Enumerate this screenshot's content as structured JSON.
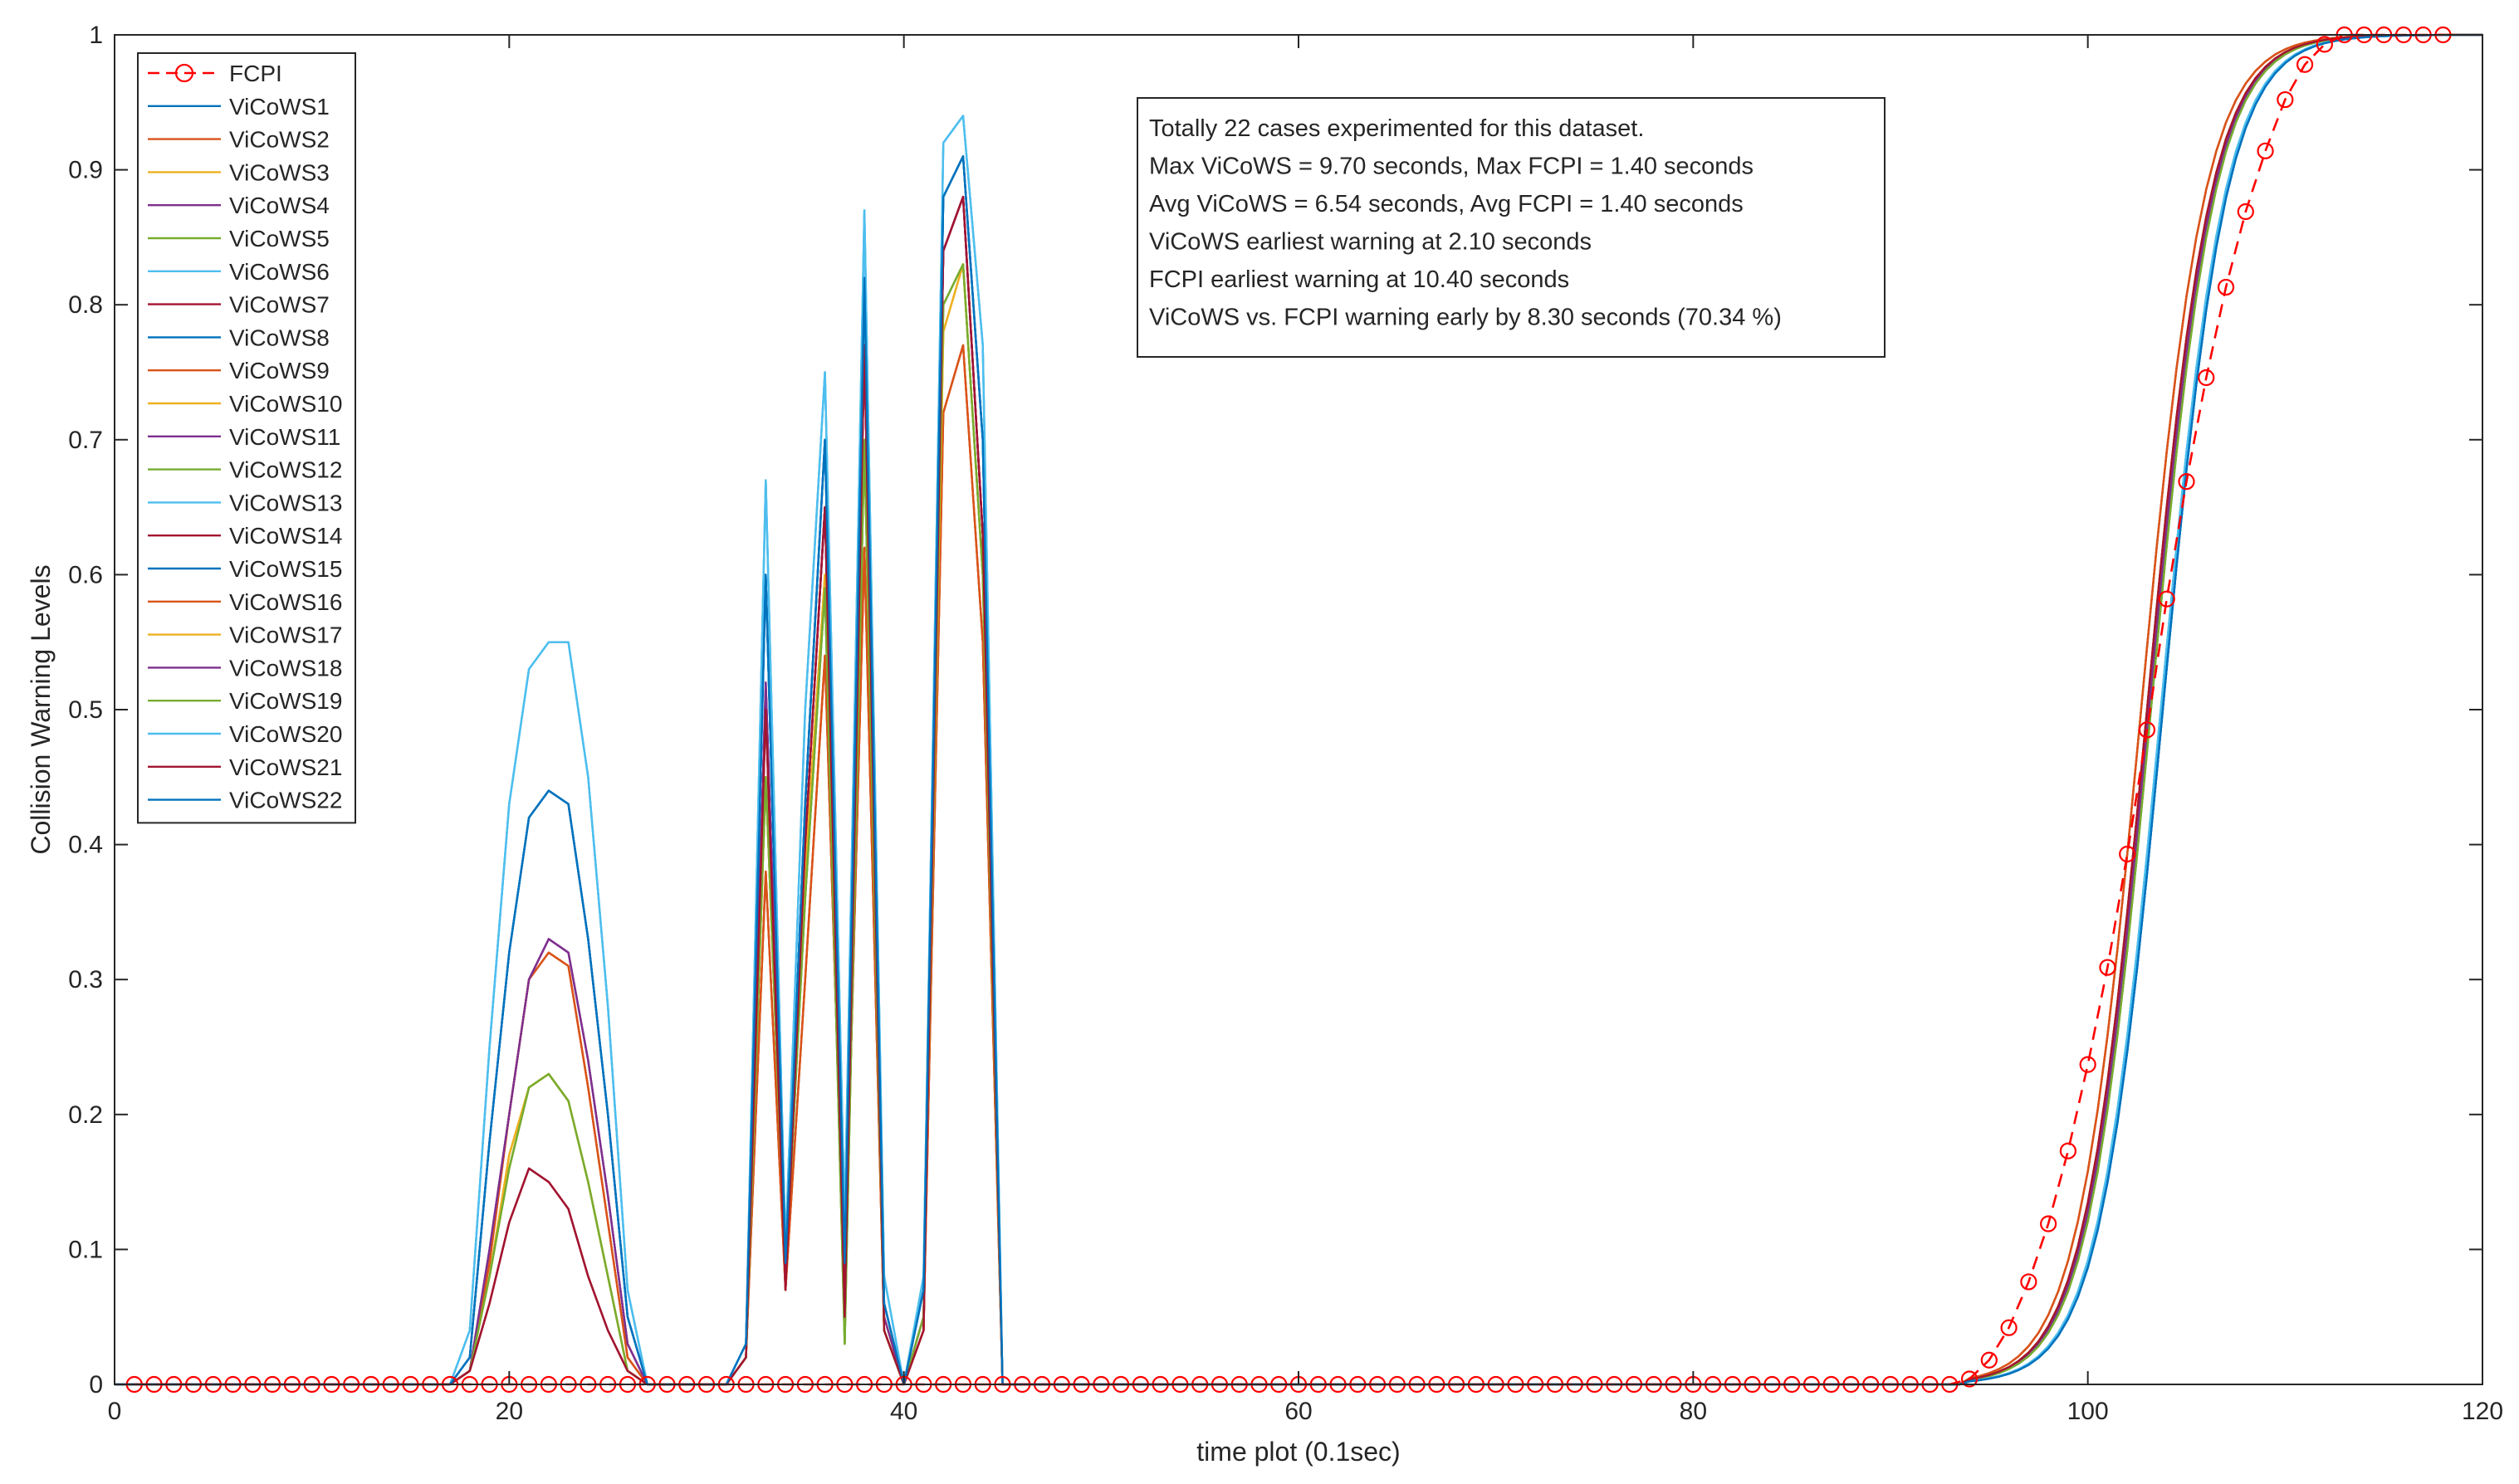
{
  "chart_data": {
    "type": "line",
    "xlabel": "time plot (0.1sec)",
    "ylabel": "Collision Warning Levels",
    "xlim": [
      0,
      120
    ],
    "ylim": [
      0,
      1
    ],
    "x_ticks": [
      0,
      20,
      40,
      60,
      80,
      100,
      120
    ],
    "x_tick_labels": [
      "0",
      "20",
      "40",
      "60",
      "80",
      "100",
      "120"
    ],
    "y_ticks": [
      0,
      0.1,
      0.2,
      0.3,
      0.4,
      0.5,
      0.6,
      0.7,
      0.8,
      0.9,
      1
    ],
    "y_tick_labels": [
      "0",
      "0.1",
      "0.2",
      "0.3",
      "0.4",
      "0.5",
      "0.6",
      "0.7",
      "0.8",
      "0.9",
      "1"
    ],
    "grid": false,
    "legend_position": "top-left",
    "annotation_lines": [
      "Totally 22 cases experimented for this dataset.",
      "Max ViCoWS = 9.70 seconds, Max FCPI = 1.40 seconds",
      "Avg ViCoWS = 6.54 seconds, Avg FCPI = 1.40 seconds",
      "ViCoWS earliest warning at 2.10 seconds",
      "FCPI earliest warning at 10.40 seconds",
      "ViCoWS vs. FCPI warning early by 8.30 seconds (70.34 %)"
    ],
    "fcpi": {
      "name": "FCPI",
      "color": "#ff0000",
      "style": "dashed-circle",
      "x": [
        1,
        2,
        3,
        4,
        5,
        6,
        7,
        8,
        9,
        10,
        11,
        12,
        13,
        14,
        15,
        16,
        17,
        18,
        19,
        20,
        21,
        22,
        23,
        24,
        25,
        26,
        27,
        28,
        29,
        30,
        31,
        32,
        33,
        34,
        35,
        36,
        37,
        38,
        39,
        40,
        41,
        42,
        43,
        44,
        45,
        46,
        47,
        48,
        49,
        50,
        51,
        52,
        53,
        54,
        55,
        56,
        57,
        58,
        59,
        60,
        61,
        62,
        63,
        64,
        65,
        66,
        67,
        68,
        69,
        70,
        71,
        72,
        73,
        74,
        75,
        76,
        77,
        78,
        79,
        80,
        81,
        82,
        83,
        84,
        85,
        86,
        87,
        88,
        89,
        90,
        91,
        92,
        93,
        94,
        95,
        96,
        97,
        98,
        99,
        100,
        101,
        102,
        103,
        104,
        105,
        106,
        107,
        108,
        109,
        110,
        111,
        112,
        113,
        114,
        115,
        116,
        117,
        118
      ],
      "y": [
        0,
        0,
        0,
        0,
        0,
        0,
        0,
        0,
        0,
        0,
        0,
        0,
        0,
        0,
        0,
        0,
        0,
        0,
        0,
        0,
        0,
        0,
        0,
        0,
        0,
        0,
        0,
        0,
        0,
        0,
        0,
        0,
        0,
        0,
        0,
        0,
        0,
        0,
        0,
        0,
        0,
        0,
        0,
        0,
        0,
        0,
        0,
        0,
        0,
        0,
        0,
        0,
        0,
        0,
        0,
        0,
        0,
        0,
        0,
        0,
        0,
        0,
        0,
        0,
        0,
        0,
        0,
        0,
        0,
        0,
        0,
        0,
        0,
        0,
        0,
        0,
        0,
        0,
        0,
        0,
        0,
        0,
        0,
        0,
        0,
        0,
        0,
        0,
        0,
        0,
        0,
        0,
        0,
        0.004,
        0.018,
        0.042,
        0.076,
        0.119,
        0.173,
        0.237,
        0.309,
        0.393,
        0.485,
        0.582,
        0.669,
        0.746,
        0.813,
        0.869,
        0.914,
        0.952,
        0.978,
        0.993,
        1.0,
        1.0,
        1.0,
        1.0,
        1.0,
        1.0
      ]
    },
    "vicows_x": [
      0,
      17,
      18,
      19,
      20,
      21,
      22,
      23,
      24,
      25,
      26,
      27,
      31,
      32,
      33,
      34,
      35,
      36,
      37,
      38,
      39,
      40,
      41,
      42,
      43,
      44,
      45,
      120
    ],
    "vicows_series": [
      {
        "name": "ViCoWS1",
        "color": "#0072bd",
        "y": [
          0,
          0,
          0.02,
          0.18,
          0.32,
          0.42,
          0.44,
          0.43,
          0.33,
          0.2,
          0.05,
          0,
          0,
          0.03,
          0.6,
          0.09,
          0.43,
          0.7,
          0.09,
          0.82,
          0.06,
          0,
          0.07,
          0.88,
          0.91,
          0.7,
          0,
          0
        ],
        "tail_shift": 0.5
      },
      {
        "name": "ViCoWS2",
        "color": "#d95319",
        "y": [
          0,
          0,
          0.01,
          0.09,
          0.2,
          0.3,
          0.32,
          0.31,
          0.22,
          0.12,
          0.02,
          0,
          0,
          0.02,
          0.38,
          0.07,
          0.3,
          0.54,
          0.07,
          0.62,
          0.04,
          0,
          0.04,
          0.72,
          0.77,
          0.55,
          0,
          0
        ],
        "tail_shift": -0.6
      },
      {
        "name": "ViCoWS3",
        "color": "#edb120",
        "y": [
          0,
          0,
          0.01,
          0.08,
          0.17,
          0.22,
          0.23,
          0.21,
          0.15,
          0.08,
          0.01,
          0,
          0,
          0.02,
          0.45,
          0.08,
          0.38,
          0.6,
          0.04,
          0.7,
          0.05,
          0,
          0.05,
          0.78,
          0.83,
          0.6,
          0,
          0
        ],
        "tail_shift": -0.3
      },
      {
        "name": "ViCoWS4",
        "color": "#7e2f8e",
        "y": [
          0,
          0,
          0.01,
          0.1,
          0.2,
          0.3,
          0.33,
          0.32,
          0.24,
          0.14,
          0.03,
          0,
          0,
          0.02,
          0.52,
          0.08,
          0.4,
          0.65,
          0.06,
          0.77,
          0.05,
          0,
          0.05,
          0.84,
          0.88,
          0.63,
          0,
          0
        ],
        "tail_shift": -0.2
      },
      {
        "name": "ViCoWS5",
        "color": "#77ac30",
        "y": [
          0,
          0,
          0.01,
          0.08,
          0.16,
          0.22,
          0.23,
          0.21,
          0.15,
          0.08,
          0.01,
          0,
          0,
          0.02,
          0.45,
          0.08,
          0.36,
          0.59,
          0.03,
          0.7,
          0.04,
          0,
          0.05,
          0.8,
          0.83,
          0.6,
          0,
          0
        ],
        "tail_shift": -0.1
      },
      {
        "name": "ViCoWS6",
        "color": "#4dbeee",
        "y": [
          0,
          0,
          0.04,
          0.25,
          0.43,
          0.53,
          0.55,
          0.55,
          0.45,
          0.28,
          0.07,
          0,
          0,
          0.03,
          0.67,
          0.1,
          0.5,
          0.75,
          0.12,
          0.87,
          0.08,
          0,
          0.08,
          0.92,
          0.94,
          0.77,
          0,
          0
        ],
        "tail_shift": 0.4
      },
      {
        "name": "ViCoWS7",
        "color": "#a2142f",
        "y": [
          0,
          0,
          0.01,
          0.06,
          0.12,
          0.16,
          0.15,
          0.13,
          0.08,
          0.04,
          0.01,
          0,
          0,
          0.02,
          0.5,
          0.07,
          0.4,
          0.65,
          0.05,
          0.77,
          0.04,
          0,
          0.04,
          0.84,
          0.88,
          0.63,
          0,
          0
        ],
        "tail_shift": -0.3
      },
      {
        "name": "ViCoWS8",
        "color": "#0072bd",
        "y": [
          0,
          0,
          0.02,
          0.18,
          0.32,
          0.42,
          0.44,
          0.43,
          0.33,
          0.2,
          0.05,
          0,
          0,
          0.03,
          0.6,
          0.09,
          0.43,
          0.7,
          0.09,
          0.82,
          0.06,
          0,
          0.07,
          0.88,
          0.91,
          0.7,
          0,
          0
        ],
        "tail_shift": 0.5
      },
      {
        "name": "ViCoWS9",
        "color": "#d95319",
        "y": [
          0,
          0,
          0.01,
          0.09,
          0.2,
          0.3,
          0.32,
          0.31,
          0.22,
          0.12,
          0.02,
          0,
          0,
          0.02,
          0.38,
          0.07,
          0.3,
          0.54,
          0.07,
          0.62,
          0.04,
          0,
          0.04,
          0.72,
          0.77,
          0.55,
          0,
          0
        ],
        "tail_shift": -0.6
      },
      {
        "name": "ViCoWS10",
        "color": "#edb120",
        "y": [
          0,
          0,
          0.01,
          0.08,
          0.17,
          0.22,
          0.23,
          0.21,
          0.15,
          0.08,
          0.01,
          0,
          0,
          0.02,
          0.45,
          0.08,
          0.38,
          0.6,
          0.04,
          0.7,
          0.05,
          0,
          0.05,
          0.78,
          0.83,
          0.6,
          0,
          0
        ],
        "tail_shift": -0.3
      },
      {
        "name": "ViCoWS11",
        "color": "#7e2f8e",
        "y": [
          0,
          0,
          0.01,
          0.1,
          0.2,
          0.3,
          0.33,
          0.32,
          0.24,
          0.14,
          0.03,
          0,
          0,
          0.02,
          0.52,
          0.08,
          0.4,
          0.65,
          0.06,
          0.77,
          0.05,
          0,
          0.05,
          0.84,
          0.88,
          0.63,
          0,
          0
        ],
        "tail_shift": -0.2
      },
      {
        "name": "ViCoWS12",
        "color": "#77ac30",
        "y": [
          0,
          0,
          0.01,
          0.08,
          0.16,
          0.22,
          0.23,
          0.21,
          0.15,
          0.08,
          0.01,
          0,
          0,
          0.02,
          0.45,
          0.08,
          0.36,
          0.59,
          0.03,
          0.7,
          0.04,
          0,
          0.05,
          0.8,
          0.83,
          0.6,
          0,
          0
        ],
        "tail_shift": -0.1
      },
      {
        "name": "ViCoWS13",
        "color": "#4dbeee",
        "y": [
          0,
          0,
          0.04,
          0.25,
          0.43,
          0.53,
          0.55,
          0.55,
          0.45,
          0.28,
          0.07,
          0,
          0,
          0.03,
          0.67,
          0.1,
          0.5,
          0.75,
          0.12,
          0.87,
          0.08,
          0,
          0.08,
          0.92,
          0.94,
          0.77,
          0,
          0
        ],
        "tail_shift": 0.4
      },
      {
        "name": "ViCoWS14",
        "color": "#a2142f",
        "y": [
          0,
          0,
          0.01,
          0.06,
          0.12,
          0.16,
          0.15,
          0.13,
          0.08,
          0.04,
          0.01,
          0,
          0,
          0.02,
          0.5,
          0.07,
          0.4,
          0.65,
          0.05,
          0.77,
          0.04,
          0,
          0.04,
          0.84,
          0.88,
          0.63,
          0,
          0
        ],
        "tail_shift": -0.3
      },
      {
        "name": "ViCoWS15",
        "color": "#0072bd",
        "y": [
          0,
          0,
          0.02,
          0.18,
          0.32,
          0.42,
          0.44,
          0.43,
          0.33,
          0.2,
          0.05,
          0,
          0,
          0.03,
          0.6,
          0.09,
          0.43,
          0.7,
          0.09,
          0.82,
          0.06,
          0,
          0.07,
          0.88,
          0.91,
          0.7,
          0,
          0
        ],
        "tail_shift": 0.5
      },
      {
        "name": "ViCoWS16",
        "color": "#d95319",
        "y": [
          0,
          0,
          0.01,
          0.09,
          0.2,
          0.3,
          0.32,
          0.31,
          0.22,
          0.12,
          0.02,
          0,
          0,
          0.02,
          0.38,
          0.07,
          0.3,
          0.54,
          0.07,
          0.62,
          0.04,
          0,
          0.04,
          0.72,
          0.77,
          0.55,
          0,
          0
        ],
        "tail_shift": -0.6
      },
      {
        "name": "ViCoWS17",
        "color": "#edb120",
        "y": [
          0,
          0,
          0.01,
          0.08,
          0.17,
          0.22,
          0.23,
          0.21,
          0.15,
          0.08,
          0.01,
          0,
          0,
          0.02,
          0.45,
          0.08,
          0.38,
          0.6,
          0.04,
          0.7,
          0.05,
          0,
          0.05,
          0.78,
          0.83,
          0.6,
          0,
          0
        ],
        "tail_shift": -0.3
      },
      {
        "name": "ViCoWS18",
        "color": "#7e2f8e",
        "y": [
          0,
          0,
          0.01,
          0.1,
          0.2,
          0.3,
          0.33,
          0.32,
          0.24,
          0.14,
          0.03,
          0,
          0,
          0.02,
          0.52,
          0.08,
          0.4,
          0.65,
          0.06,
          0.77,
          0.05,
          0,
          0.05,
          0.84,
          0.88,
          0.63,
          0,
          0
        ],
        "tail_shift": -0.2
      },
      {
        "name": "ViCoWS19",
        "color": "#77ac30",
        "y": [
          0,
          0,
          0.01,
          0.08,
          0.16,
          0.22,
          0.23,
          0.21,
          0.15,
          0.08,
          0.01,
          0,
          0,
          0.02,
          0.45,
          0.08,
          0.36,
          0.59,
          0.03,
          0.7,
          0.04,
          0,
          0.05,
          0.8,
          0.83,
          0.6,
          0,
          0
        ],
        "tail_shift": -0.1
      },
      {
        "name": "ViCoWS20",
        "color": "#4dbeee",
        "y": [
          0,
          0,
          0.04,
          0.25,
          0.43,
          0.53,
          0.55,
          0.55,
          0.45,
          0.28,
          0.07,
          0,
          0,
          0.03,
          0.67,
          0.1,
          0.5,
          0.75,
          0.12,
          0.87,
          0.08,
          0,
          0.08,
          0.92,
          0.94,
          0.77,
          0,
          0
        ],
        "tail_shift": 0.4
      },
      {
        "name": "ViCoWS21",
        "color": "#a2142f",
        "y": [
          0,
          0,
          0.01,
          0.06,
          0.12,
          0.16,
          0.15,
          0.13,
          0.08,
          0.04,
          0.01,
          0,
          0,
          0.02,
          0.5,
          0.07,
          0.4,
          0.65,
          0.05,
          0.77,
          0.04,
          0,
          0.04,
          0.84,
          0.88,
          0.63,
          0,
          0
        ],
        "tail_shift": -0.3
      },
      {
        "name": "ViCoWS22",
        "color": "#0072bd",
        "y": [
          0,
          0,
          0.02,
          0.18,
          0.32,
          0.42,
          0.44,
          0.43,
          0.33,
          0.2,
          0.05,
          0,
          0,
          0.03,
          0.6,
          0.09,
          0.43,
          0.7,
          0.09,
          0.82,
          0.06,
          0,
          0.07,
          0.88,
          0.91,
          0.7,
          0,
          0
        ],
        "tail_shift": 0.5
      }
    ],
    "vicows_sigmoid": {
      "midpoint": 103.3,
      "steepness": 0.62,
      "start": 94
    }
  }
}
